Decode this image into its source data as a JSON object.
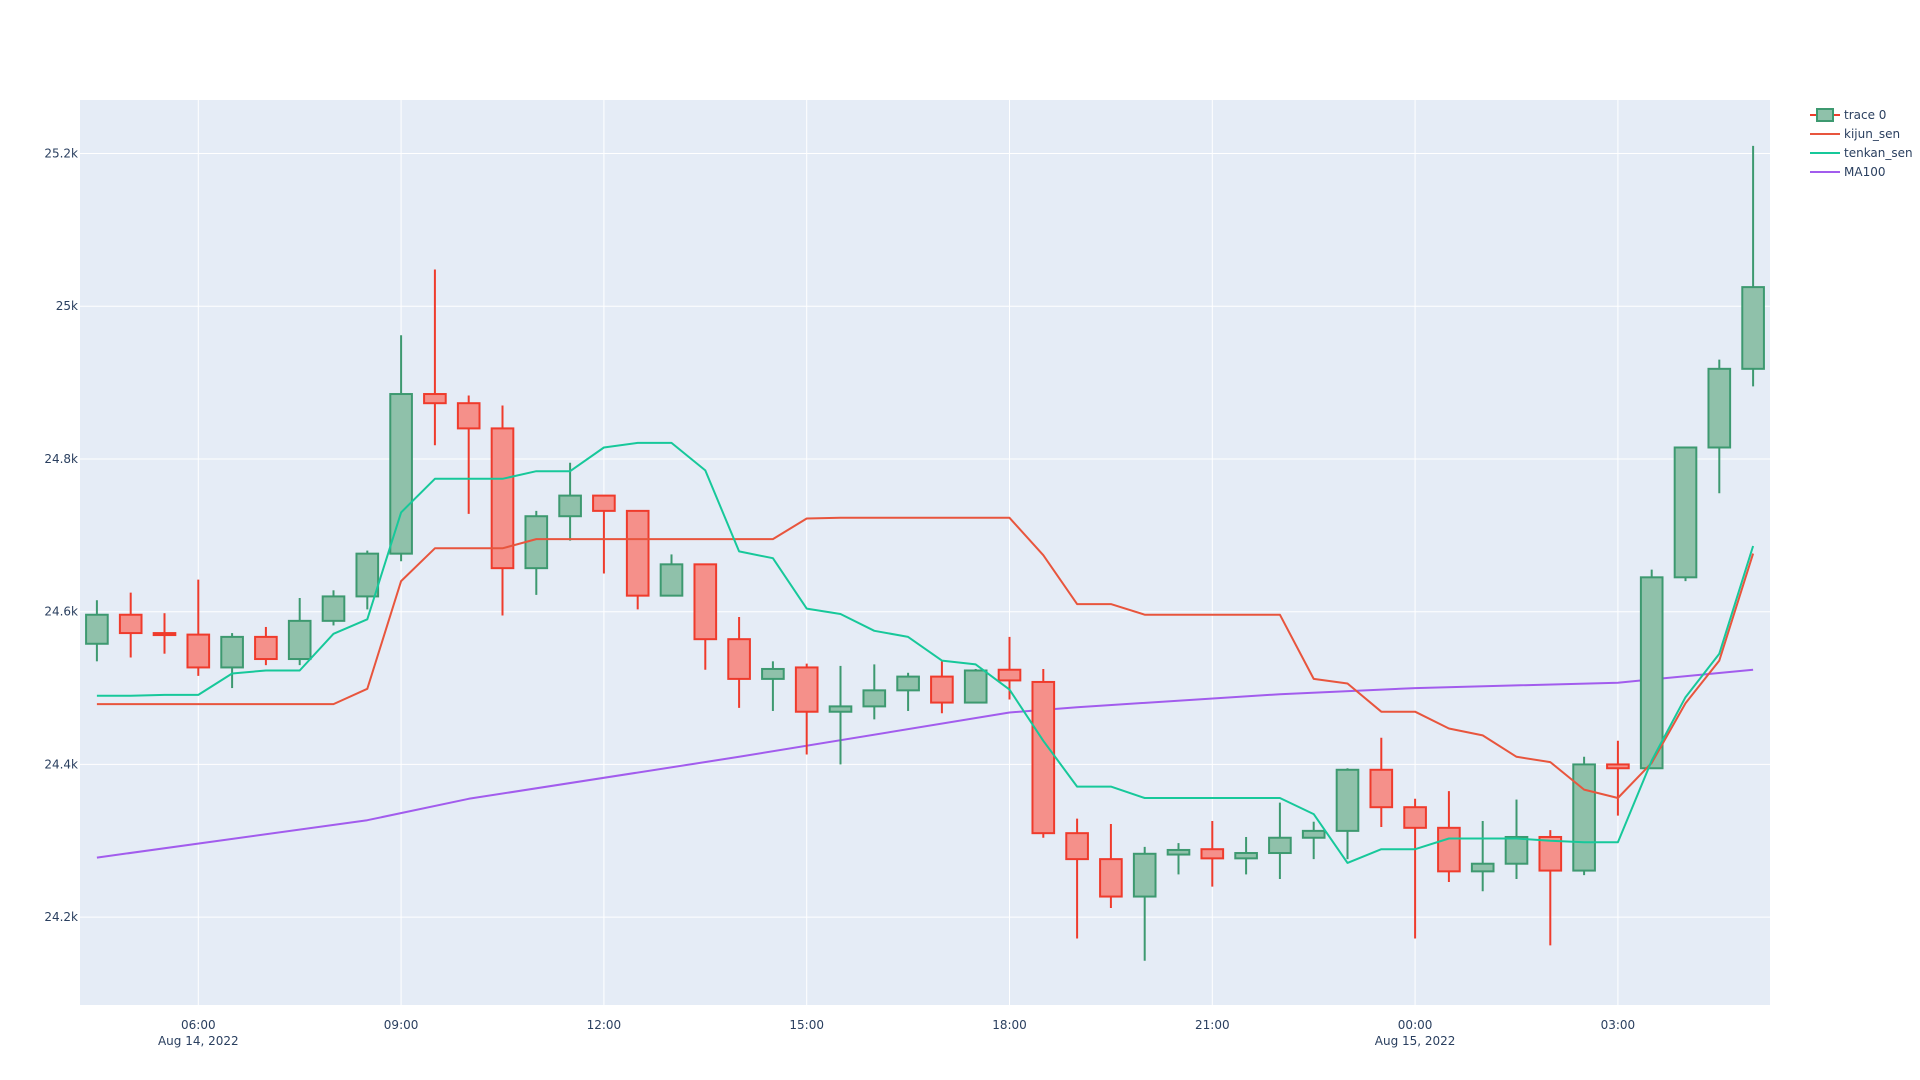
{
  "chart_data": {
    "type": "candlestick",
    "colors": {
      "increasing": "#3d9970",
      "increasing_fill": "#8fc1aa",
      "decreasing": "#ef3b2c",
      "decreasing_fill": "#f5908a",
      "kijun_sen": "#e8553d",
      "tenkan_sen": "#17c89a",
      "MA100": "#a25ced",
      "plot_bg": "#e5ecf6",
      "grid": "#ffffff"
    },
    "x_axis": {
      "ticks": [
        {
          "label": "06:00",
          "sublabel": "Aug 14, 2022",
          "hour": 6
        },
        {
          "label": "09:00",
          "sublabel": "",
          "hour": 9
        },
        {
          "label": "12:00",
          "sublabel": "",
          "hour": 12
        },
        {
          "label": "15:00",
          "sublabel": "",
          "hour": 15
        },
        {
          "label": "18:00",
          "sublabel": "",
          "hour": 18
        },
        {
          "label": "21:00",
          "sublabel": "",
          "hour": 21
        },
        {
          "label": "00:00",
          "sublabel": "Aug 15, 2022",
          "hour": 24
        },
        {
          "label": "03:00",
          "sublabel": "",
          "hour": 27
        }
      ],
      "range_hours": [
        4.25,
        29.25
      ]
    },
    "y_axis": {
      "ticks": [
        {
          "label": "24.2k",
          "value": 24200
        },
        {
          "label": "24.4k",
          "value": 24400
        },
        {
          "label": "24.6k",
          "value": 24600
        },
        {
          "label": "24.8k",
          "value": 24800
        },
        {
          "label": "25k",
          "value": 25000
        },
        {
          "label": "25.2k",
          "value": 25200
        }
      ],
      "range": [
        24085,
        25270
      ]
    },
    "legend": {
      "placement": "top-right",
      "entries": [
        "trace 0",
        "kijun_sen",
        "tenkan_sen",
        "MA100"
      ]
    },
    "candles": [
      {
        "t": 4.5,
        "o": 24558,
        "h": 24615,
        "l": 24535,
        "c": 24596
      },
      {
        "t": 5.0,
        "o": 24596,
        "h": 24625,
        "l": 24540,
        "c": 24572
      },
      {
        "t": 5.5,
        "o": 24572,
        "h": 24598,
        "l": 24545,
        "c": 24570
      },
      {
        "t": 6.0,
        "o": 24570,
        "h": 24642,
        "l": 24516,
        "c": 24527
      },
      {
        "t": 6.5,
        "o": 24527,
        "h": 24572,
        "l": 24500,
        "c": 24567
      },
      {
        "t": 7.0,
        "o": 24567,
        "h": 24580,
        "l": 24530,
        "c": 24538
      },
      {
        "t": 7.5,
        "o": 24538,
        "h": 24618,
        "l": 24530,
        "c": 24588
      },
      {
        "t": 8.0,
        "o": 24588,
        "h": 24628,
        "l": 24582,
        "c": 24620
      },
      {
        "t": 8.5,
        "o": 24620,
        "h": 24680,
        "l": 24603,
        "c": 24676
      },
      {
        "t": 9.0,
        "o": 24676,
        "h": 24962,
        "l": 24666,
        "c": 24885
      },
      {
        "t": 9.5,
        "o": 24885,
        "h": 25048,
        "l": 24818,
        "c": 24873
      },
      {
        "t": 10.0,
        "o": 24873,
        "h": 24883,
        "l": 24728,
        "c": 24840
      },
      {
        "t": 10.5,
        "o": 24840,
        "h": 24870,
        "l": 24595,
        "c": 24657
      },
      {
        "t": 11.0,
        "o": 24657,
        "h": 24732,
        "l": 24622,
        "c": 24725
      },
      {
        "t": 11.5,
        "o": 24725,
        "h": 24795,
        "l": 24693,
        "c": 24752
      },
      {
        "t": 12.0,
        "o": 24752,
        "h": 24752,
        "l": 24650,
        "c": 24732
      },
      {
        "t": 12.5,
        "o": 24732,
        "h": 24732,
        "l": 24603,
        "c": 24621
      },
      {
        "t": 13.0,
        "o": 24621,
        "h": 24675,
        "l": 24620,
        "c": 24662
      },
      {
        "t": 13.5,
        "o": 24662,
        "h": 24662,
        "l": 24524,
        "c": 24564
      },
      {
        "t": 14.0,
        "o": 24564,
        "h": 24593,
        "l": 24474,
        "c": 24512
      },
      {
        "t": 14.5,
        "o": 24512,
        "h": 24535,
        "l": 24470,
        "c": 24525
      },
      {
        "t": 15.0,
        "o": 24527,
        "h": 24532,
        "l": 24413,
        "c": 24469
      },
      {
        "t": 15.5,
        "o": 24469,
        "h": 24529,
        "l": 24400,
        "c": 24476
      },
      {
        "t": 16.0,
        "o": 24476,
        "h": 24531,
        "l": 24459,
        "c": 24497
      },
      {
        "t": 16.5,
        "o": 24497,
        "h": 24520,
        "l": 24470,
        "c": 24515
      },
      {
        "t": 17.0,
        "o": 24515,
        "h": 24535,
        "l": 24467,
        "c": 24481
      },
      {
        "t": 17.5,
        "o": 24481,
        "h": 24525,
        "l": 24480,
        "c": 24523
      },
      {
        "t": 18.0,
        "o": 24524,
        "h": 24567,
        "l": 24485,
        "c": 24510
      },
      {
        "t": 18.5,
        "o": 24508,
        "h": 24525,
        "l": 24304,
        "c": 24310
      },
      {
        "t": 19.0,
        "o": 24310,
        "h": 24329,
        "l": 24172,
        "c": 24276
      },
      {
        "t": 19.5,
        "o": 24276,
        "h": 24322,
        "l": 24212,
        "c": 24227
      },
      {
        "t": 20.0,
        "o": 24227,
        "h": 24292,
        "l": 24143,
        "c": 24283
      },
      {
        "t": 20.5,
        "o": 24282,
        "h": 24297,
        "l": 24256,
        "c": 24288
      },
      {
        "t": 21.0,
        "o": 24289,
        "h": 24326,
        "l": 24240,
        "c": 24277
      },
      {
        "t": 21.5,
        "o": 24277,
        "h": 24305,
        "l": 24256,
        "c": 24284
      },
      {
        "t": 22.0,
        "o": 24284,
        "h": 24350,
        "l": 24250,
        "c": 24304
      },
      {
        "t": 22.5,
        "o": 24304,
        "h": 24325,
        "l": 24276,
        "c": 24313
      },
      {
        "t": 23.0,
        "o": 24313,
        "h": 24395,
        "l": 24276,
        "c": 24393
      },
      {
        "t": 23.5,
        "o": 24393,
        "h": 24435,
        "l": 24318,
        "c": 24344
      },
      {
        "t": 24.0,
        "o": 24344,
        "h": 24355,
        "l": 24172,
        "c": 24317
      },
      {
        "t": 24.5,
        "o": 24317,
        "h": 24365,
        "l": 24246,
        "c": 24260
      },
      {
        "t": 25.0,
        "o": 24260,
        "h": 24326,
        "l": 24234,
        "c": 24270
      },
      {
        "t": 25.5,
        "o": 24270,
        "h": 24354,
        "l": 24250,
        "c": 24305
      },
      {
        "t": 26.0,
        "o": 24305,
        "h": 24314,
        "l": 24163,
        "c": 24261
      },
      {
        "t": 26.5,
        "o": 24261,
        "h": 24410,
        "l": 24255,
        "c": 24400
      },
      {
        "t": 27.0,
        "o": 24400,
        "h": 24431,
        "l": 24333,
        "c": 24395
      },
      {
        "t": 27.5,
        "o": 24395,
        "h": 24655,
        "l": 24394,
        "c": 24645
      },
      {
        "t": 28.0,
        "o": 24645,
        "h": 24816,
        "l": 24640,
        "c": 24815
      },
      {
        "t": 28.5,
        "o": 24815,
        "h": 24930,
        "l": 24755,
        "c": 24918
      },
      {
        "t": 29.0,
        "o": 24918,
        "h": 25210,
        "l": 24895,
        "c": 25025
      }
    ],
    "series": [
      {
        "name": "kijun_sen",
        "x": [
          4.5,
          5.0,
          5.5,
          6.0,
          6.5,
          7.0,
          7.5,
          8.0,
          8.5,
          9.0,
          9.5,
          10.0,
          10.5,
          11.0,
          11.5,
          12.0,
          12.5,
          13.0,
          13.5,
          14.0,
          14.5,
          15.0,
          15.5,
          16.0,
          16.5,
          17.0,
          17.5,
          18.0,
          18.5,
          19.0,
          19.5,
          20.0,
          20.5,
          21.0,
          21.5,
          22.0,
          22.5,
          23.0,
          23.5,
          24.0,
          24.5,
          25.0,
          25.5,
          26.0,
          26.5,
          27.0,
          27.5,
          28.0,
          28.5,
          29.0
        ],
        "values": [
          24479,
          24479,
          24479,
          24479,
          24479,
          24479,
          24479,
          24479,
          24499,
          24640,
          24683,
          24683,
          24683,
          24695,
          24695,
          24695,
          24695,
          24695,
          24695,
          24695,
          24695,
          24722,
          24723,
          24723,
          24723,
          24723,
          24723,
          24723,
          24674,
          24610,
          24610,
          24596,
          24596,
          24596,
          24596,
          24596,
          24512,
          24506,
          24469,
          24469,
          24447,
          24438,
          24410,
          24403,
          24367,
          24356,
          24402,
          24480,
          24536,
          24676
        ]
      },
      {
        "name": "tenkan_sen",
        "x": [
          4.5,
          5.0,
          5.5,
          6.0,
          6.5,
          7.0,
          7.5,
          8.0,
          8.5,
          9.0,
          9.5,
          10.0,
          10.5,
          11.0,
          11.5,
          12.0,
          12.5,
          13.0,
          13.5,
          14.0,
          14.5,
          15.0,
          15.5,
          16.0,
          16.5,
          17.0,
          17.5,
          18.0,
          18.5,
          19.0,
          19.5,
          20.0,
          20.5,
          21.0,
          21.5,
          22.0,
          22.5,
          23.0,
          23.5,
          24.0,
          24.5,
          25.0,
          25.5,
          26.0,
          26.5,
          27.0,
          27.5,
          28.0,
          28.5,
          29.0
        ],
        "values": [
          24490,
          24490,
          24491,
          24491,
          24519,
          24523,
          24523,
          24571,
          24590,
          24730,
          24774,
          24774,
          24774,
          24784,
          24784,
          24815,
          24821,
          24821,
          24785,
          24679,
          24670,
          24604,
          24597,
          24575,
          24567,
          24536,
          24531,
          24498,
          24431,
          24371,
          24371,
          24356,
          24356,
          24356,
          24356,
          24356,
          24335,
          24271,
          24289,
          24289,
          24303,
          24303,
          24303,
          24300,
          24298,
          24298,
          24405,
          24488,
          24545,
          24686
        ]
      },
      {
        "name": "MA100",
        "x": [
          4.5,
          8.5,
          10.0,
          14.0,
          18.0,
          19.0,
          22.0,
          24.0,
          27.0,
          29.0
        ],
        "values": [
          24278,
          24327,
          24355,
          24410,
          24468,
          24475,
          24492,
          24500,
          24507,
          24524
        ]
      }
    ]
  }
}
